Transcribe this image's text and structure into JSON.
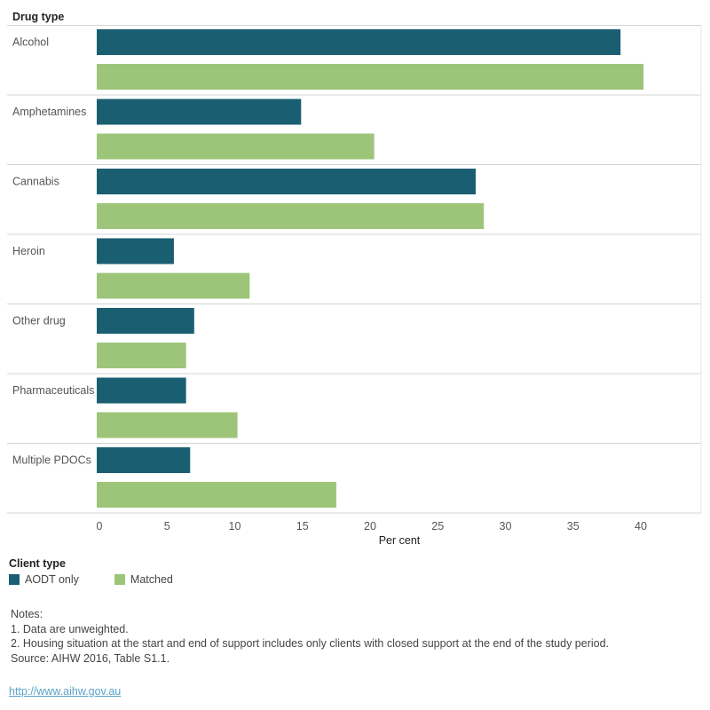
{
  "chart_data": {
    "type": "bar",
    "orientation": "horizontal",
    "row_header": "Drug type",
    "categories": [
      "Alcohol",
      "Amphetamines",
      "Cannabis",
      "Heroin",
      "Other drug",
      "Pharmaceuticals",
      "Multiple PDOCs"
    ],
    "series": [
      {
        "name": "AODT only",
        "color": "#1a5e72",
        "values": [
          38.7,
          15.1,
          28.0,
          5.7,
          7.2,
          6.6,
          6.9
        ]
      },
      {
        "name": "Matched",
        "color": "#9dc57a",
        "values": [
          40.4,
          20.5,
          28.6,
          11.3,
          6.6,
          10.4,
          17.7
        ]
      }
    ],
    "xlabel": "Per cent",
    "xticks": [
      "0",
      "5",
      "10",
      "15",
      "20",
      "25",
      "30",
      "35",
      "40"
    ],
    "xlim": [
      0,
      44.5
    ],
    "grid": false,
    "legend_title": "Client type",
    "legend_position": "bottom-left"
  },
  "notes": [
    "Notes:",
    "1. Data are unweighted.",
    "2. Housing situation at the start and end of support includes only clients with closed support at the end of the study period.",
    "Source: AIHW 2016, Table S1.1."
  ],
  "link": "http://www.aihw.gov.au"
}
